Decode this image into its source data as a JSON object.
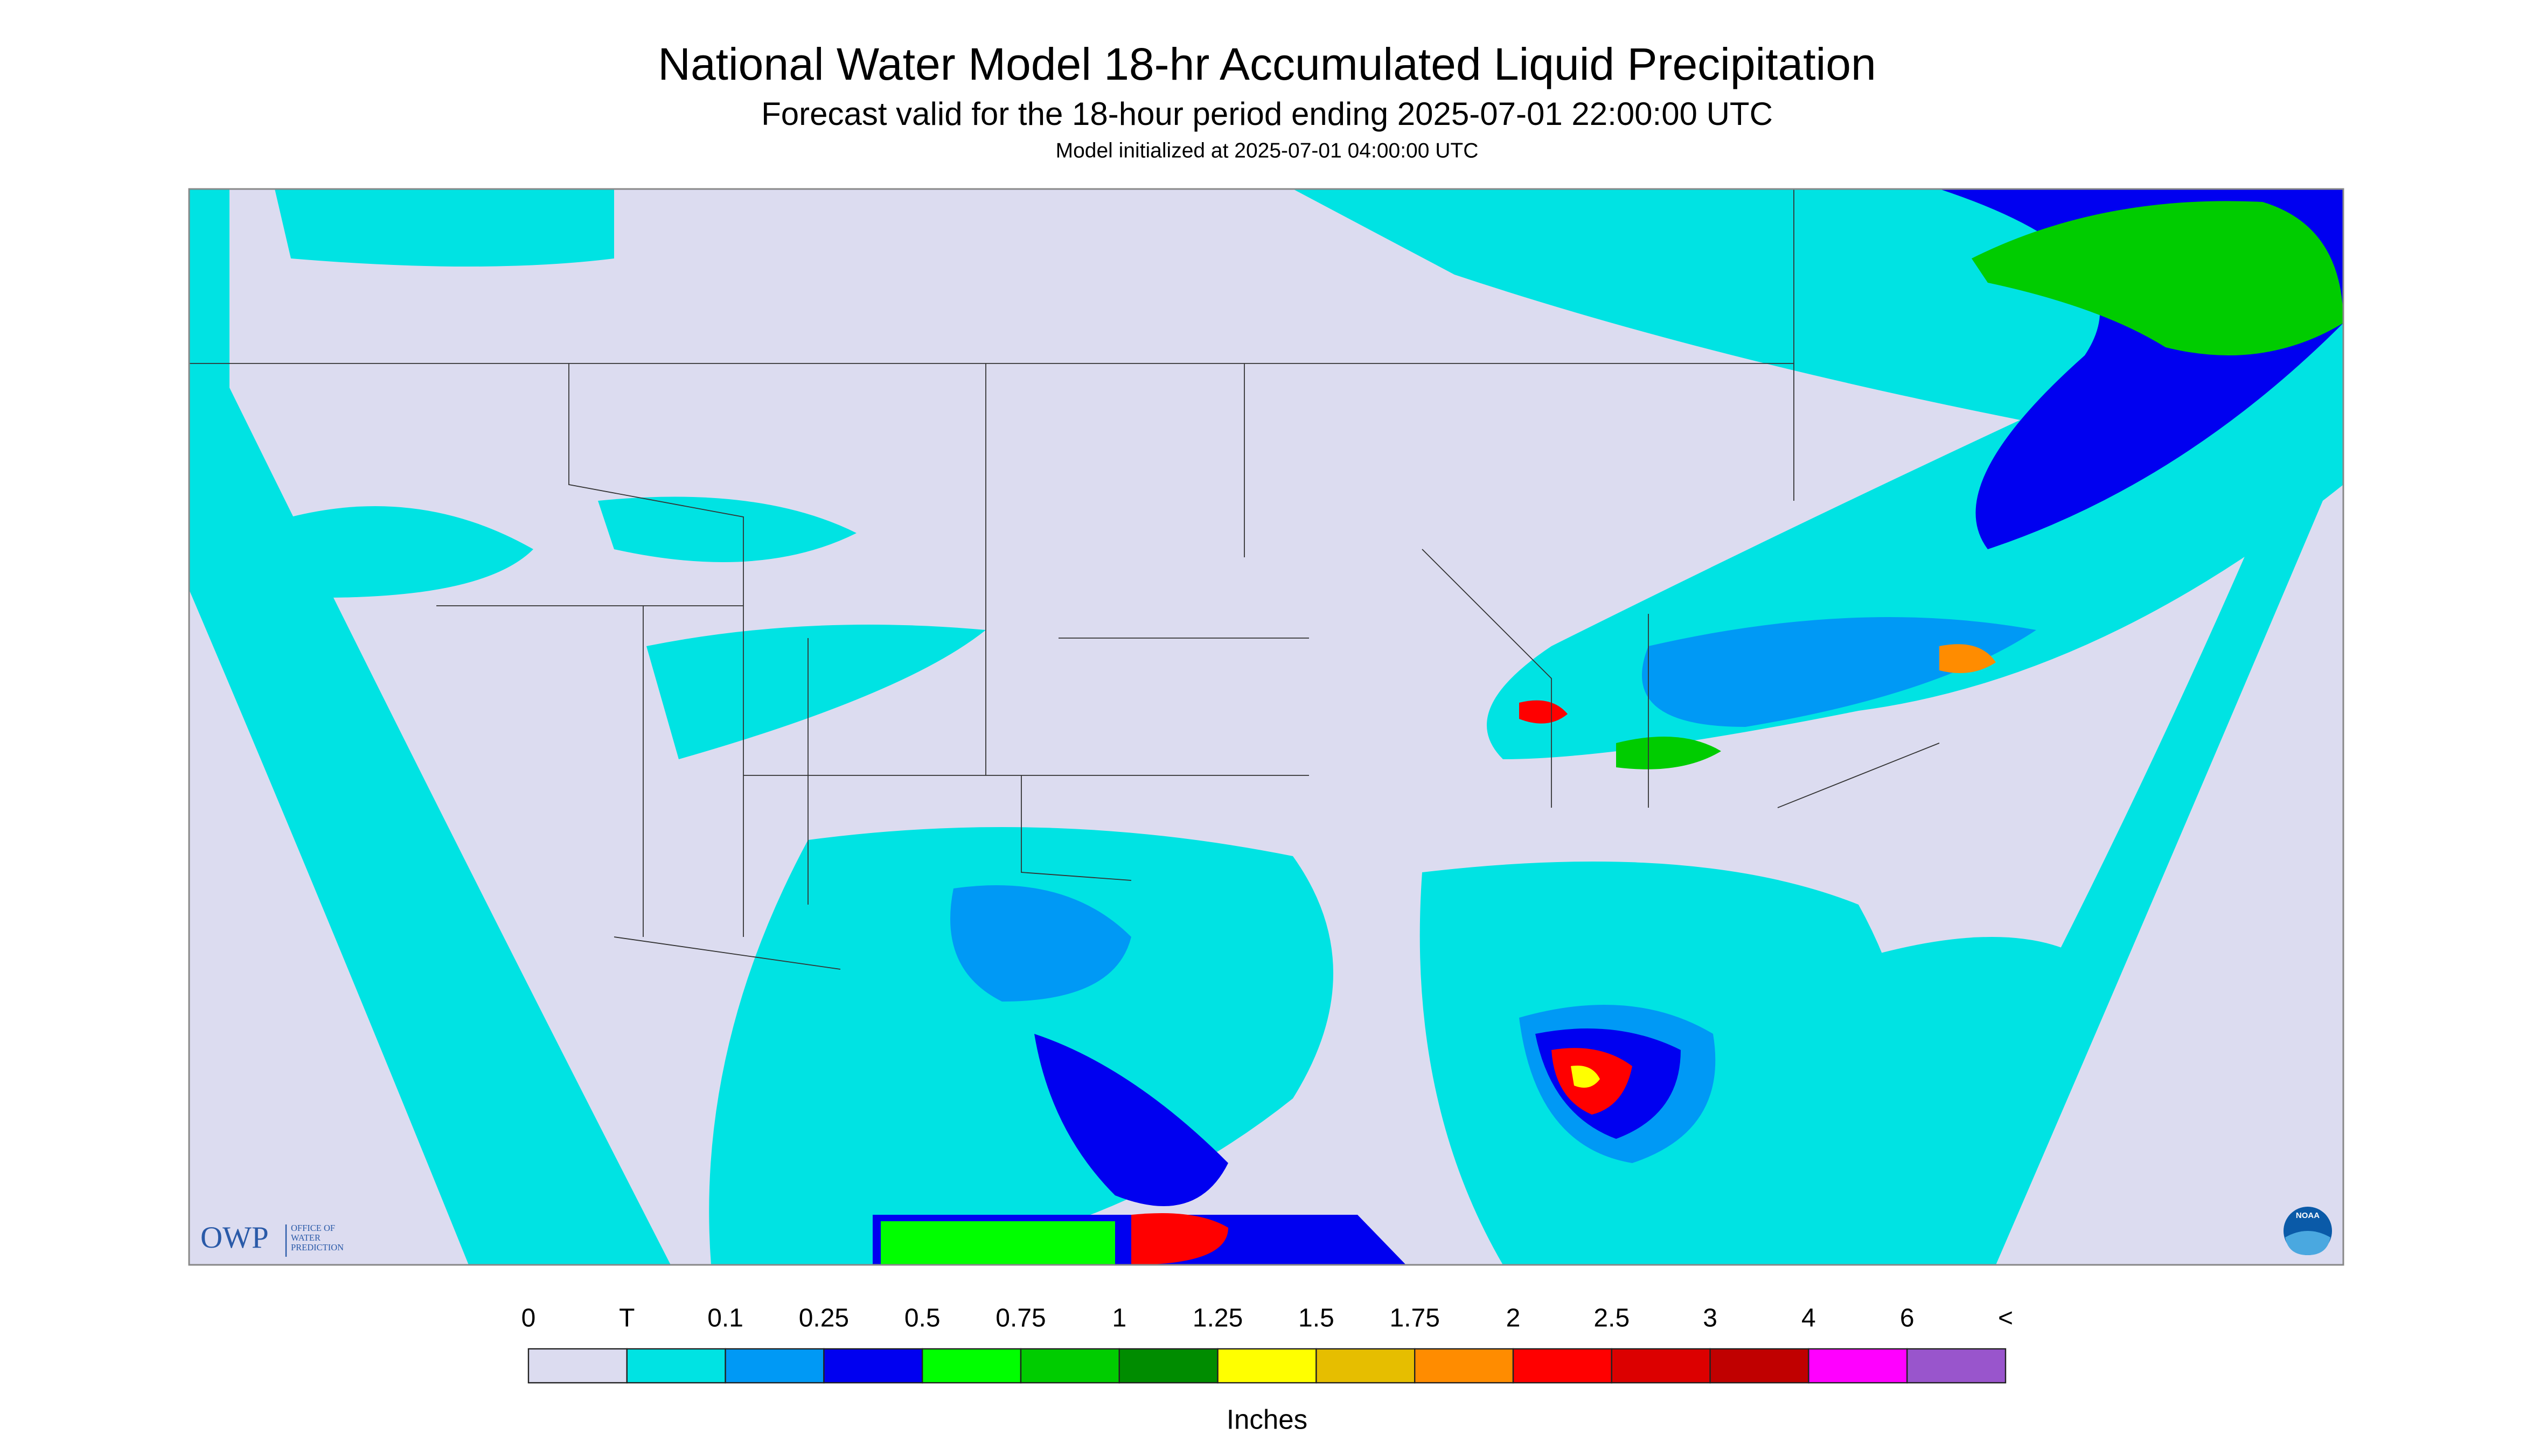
{
  "header": {
    "title": "National Water Model 18-hr Accumulated Liquid Precipitation",
    "subtitle": "Forecast valid for the 18-hour period ending 2025-07-01 22:00:00 UTC",
    "initialized": "Model initialized at 2025-07-01 04:00:00 UTC"
  },
  "logos": {
    "owp": "OWP",
    "owp_text": [
      "OFFICE OF",
      "WATER",
      "PREDICTION"
    ],
    "noaa": "NOAA"
  },
  "legend": {
    "labels": [
      "0",
      "T",
      "0.1",
      "0.25",
      "0.5",
      "0.75",
      "1",
      "1.25",
      "1.5",
      "1.75",
      "2",
      "2.5",
      "3",
      "4",
      "6",
      "<"
    ],
    "colors": [
      "#dcdcf0",
      "#00e3e3",
      "#0099f5",
      "#0000f0",
      "#00ff00",
      "#00cc00",
      "#008c00",
      "#ffff00",
      "#e6be00",
      "#ff8c00",
      "#ff0000",
      "#dc0000",
      "#c00000",
      "#ff00ff",
      "#9955cc"
    ],
    "units": "Inches"
  }
}
